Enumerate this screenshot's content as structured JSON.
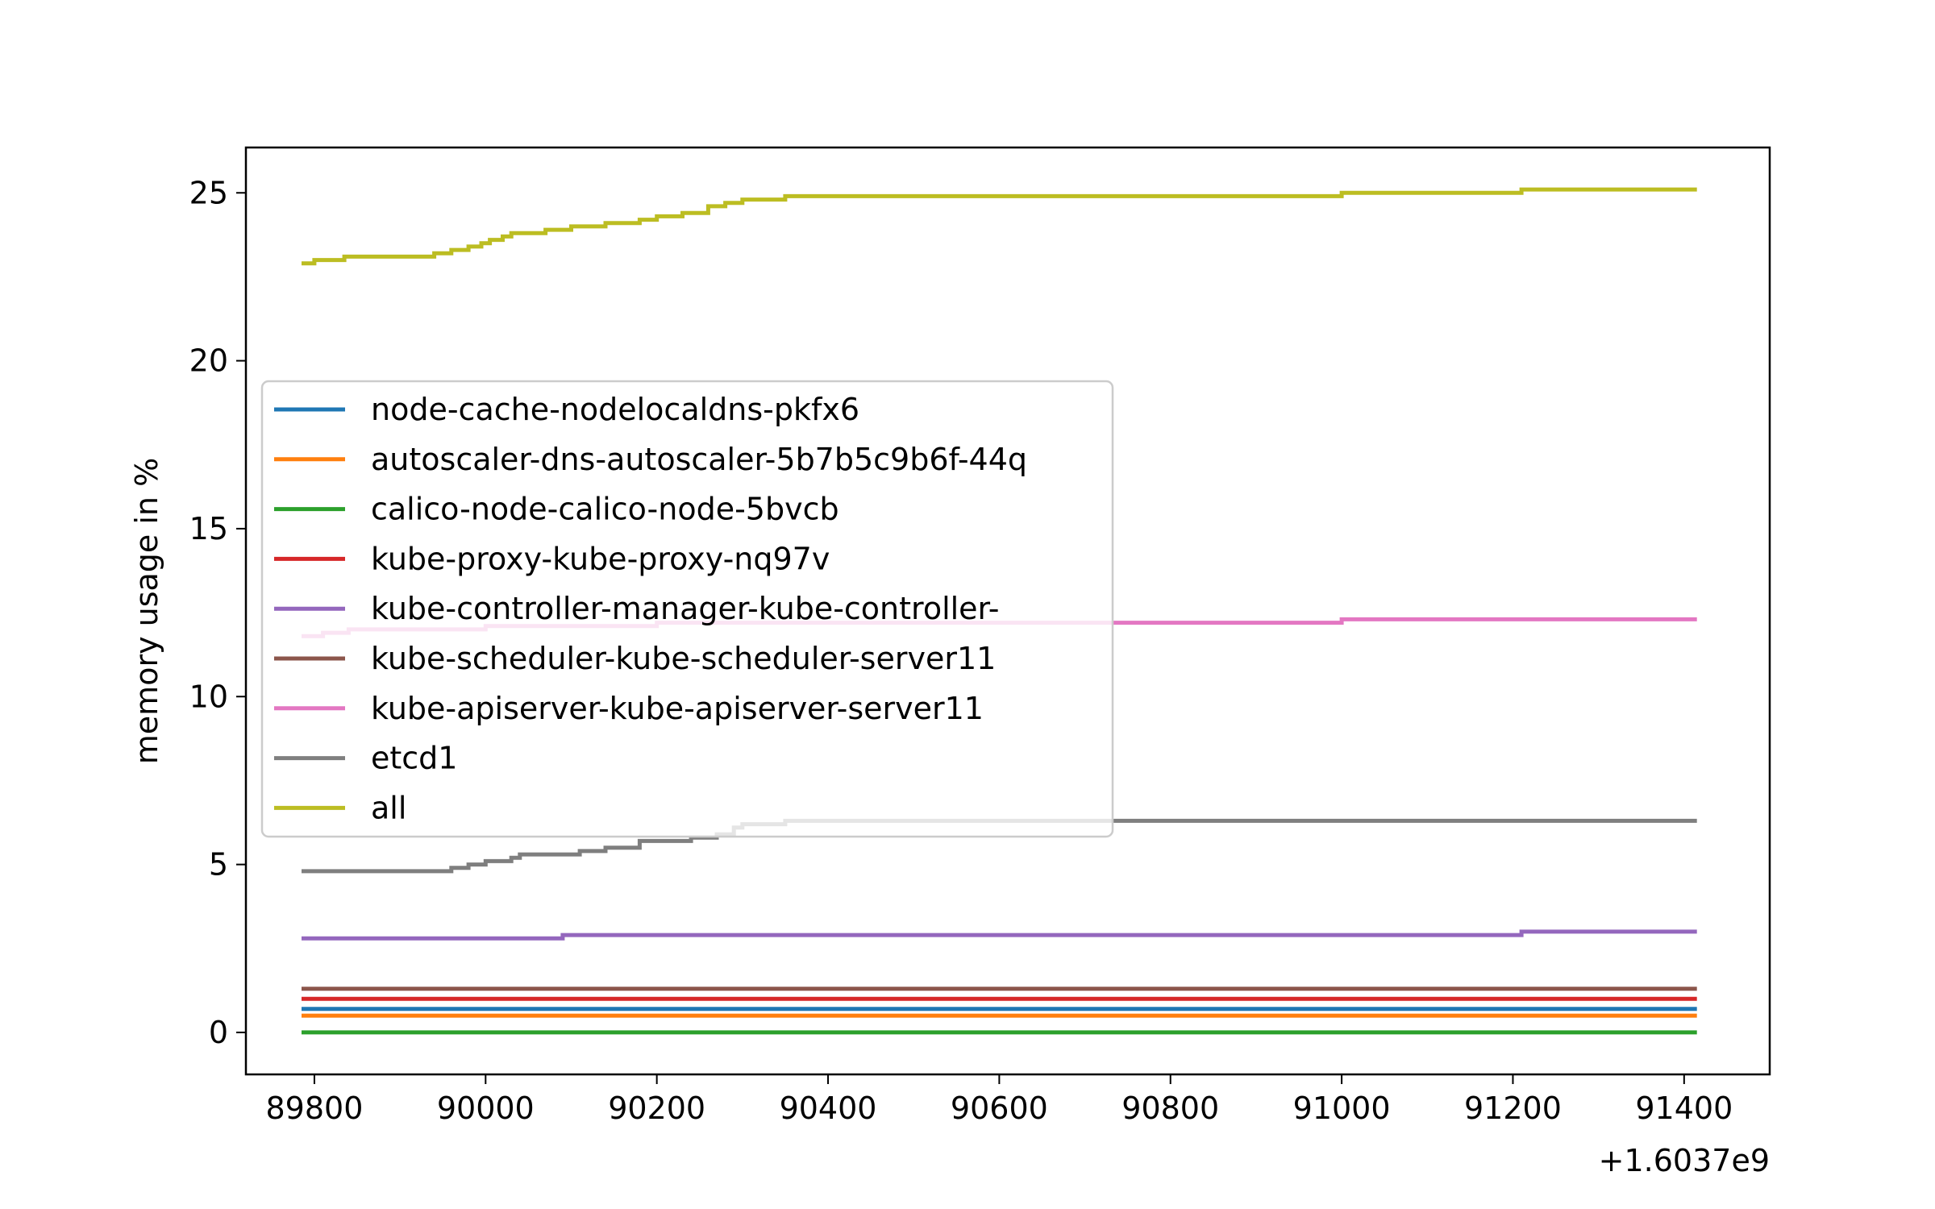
{
  "chart_data": {
    "type": "line",
    "title": "",
    "xlabel": "",
    "ylabel": "memory usage in %",
    "x_offset_label": "+1.6037e9",
    "xlim": [
      89720,
      91500
    ],
    "ylim": [
      -1.25,
      26.35
    ],
    "xticks": [
      89800,
      90000,
      90200,
      90400,
      90600,
      90800,
      91000,
      91200,
      91400
    ],
    "yticks": [
      0,
      5,
      10,
      15,
      20,
      25
    ],
    "grid": false,
    "legend_location": "center-left",
    "series": [
      {
        "name": "node-cache-nodelocaldns-pkfx6",
        "color": "#1f77b4",
        "x": [
          89785,
          91415
        ],
        "y": [
          0.7,
          0.7
        ]
      },
      {
        "name": "autoscaler-dns-autoscaler-5b7b5c9b6f-44q",
        "color": "#ff7f0e",
        "x": [
          89785,
          91415
        ],
        "y": [
          0.5,
          0.5
        ]
      },
      {
        "name": "calico-node-calico-node-5bvcb",
        "color": "#2ca02c",
        "x": [
          89785,
          91415
        ],
        "y": [
          0.0,
          0.0
        ]
      },
      {
        "name": "kube-proxy-kube-proxy-nq97v",
        "color": "#d62728",
        "x": [
          89785,
          91415
        ],
        "y": [
          1.0,
          1.0
        ]
      },
      {
        "name": "kube-controller-manager-kube-controller-",
        "color": "#9467bd",
        "x": [
          89785,
          90090,
          90090,
          91210,
          91210,
          91415
        ],
        "y": [
          2.8,
          2.8,
          2.9,
          2.9,
          3.0,
          3.0
        ]
      },
      {
        "name": "kube-scheduler-kube-scheduler-server11",
        "color": "#8c564b",
        "x": [
          89785,
          91415
        ],
        "y": [
          1.3,
          1.3
        ]
      },
      {
        "name": "kube-apiserver-kube-apiserver-server11",
        "color": "#e377c2",
        "x": [
          89785,
          89810,
          89810,
          89840,
          89840,
          90000,
          90000,
          90200,
          90200,
          90400,
          90400,
          91000,
          91000,
          91415
        ],
        "y": [
          11.8,
          11.8,
          11.9,
          11.9,
          12.0,
          12.0,
          12.1,
          12.1,
          12.2,
          12.2,
          12.2,
          12.2,
          12.3,
          12.3
        ]
      },
      {
        "name": "etcd1",
        "color": "#7f7f7f",
        "x": [
          89785,
          89960,
          89960,
          89980,
          89980,
          90000,
          90000,
          90030,
          90030,
          90040,
          90040,
          90110,
          90110,
          90140,
          90140,
          90180,
          90180,
          90240,
          90240,
          90270,
          90270,
          90290,
          90290,
          90300,
          90300,
          90350,
          90350,
          91415
        ],
        "y": [
          4.8,
          4.8,
          4.9,
          4.9,
          5.0,
          5.0,
          5.1,
          5.1,
          5.2,
          5.2,
          5.3,
          5.3,
          5.4,
          5.4,
          5.5,
          5.5,
          5.7,
          5.7,
          5.8,
          5.8,
          5.9,
          5.9,
          6.1,
          6.1,
          6.2,
          6.2,
          6.3,
          6.3
        ]
      },
      {
        "name": "all",
        "color": "#bcbd22",
        "x": [
          89785,
          89800,
          89800,
          89835,
          89835,
          89940,
          89940,
          89960,
          89960,
          89980,
          89980,
          89995,
          89995,
          90005,
          90005,
          90020,
          90020,
          90030,
          90030,
          90070,
          90070,
          90100,
          90100,
          90140,
          90140,
          90180,
          90180,
          90200,
          90200,
          90230,
          90230,
          90260,
          90260,
          90280,
          90280,
          90300,
          90300,
          90350,
          90350,
          91000,
          91000,
          91210,
          91210,
          91415
        ],
        "y": [
          22.9,
          22.9,
          23.0,
          23.0,
          23.1,
          23.1,
          23.2,
          23.2,
          23.3,
          23.3,
          23.4,
          23.4,
          23.5,
          23.5,
          23.6,
          23.6,
          23.7,
          23.7,
          23.8,
          23.8,
          23.9,
          23.9,
          24.0,
          24.0,
          24.1,
          24.1,
          24.2,
          24.2,
          24.3,
          24.3,
          24.4,
          24.4,
          24.6,
          24.6,
          24.7,
          24.7,
          24.8,
          24.8,
          24.9,
          24.9,
          25.0,
          25.0,
          25.1,
          25.1
        ]
      }
    ]
  }
}
